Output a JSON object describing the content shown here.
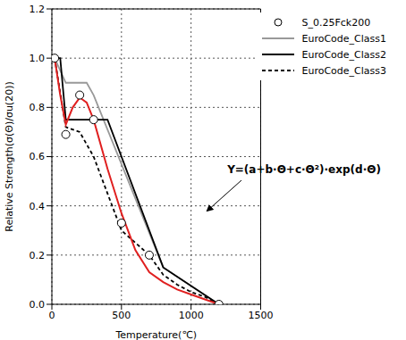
{
  "chart_data": {
    "type": "line",
    "x_label": "Temperature(℃)",
    "y_label": "Relative Strength(σ(Θ)/σu(20))",
    "xlim": [
      0,
      1500
    ],
    "xticks": [
      0,
      500,
      1000,
      1500
    ],
    "ylim": [
      0,
      1.2
    ],
    "yticks": [
      {
        "value": 0,
        "label": "0.0"
      },
      {
        "value": 0.2,
        "label": "0.2"
      },
      {
        "value": 0.4,
        "label": "0.4"
      },
      {
        "value": 0.6,
        "label": "0.6"
      },
      {
        "value": 0.8,
        "label": "0.8"
      },
      {
        "value": 1,
        "label": "1.0"
      },
      {
        "value": 1.2,
        "label": "1.2"
      }
    ],
    "grid": true,
    "legend": "upper right",
    "annotations": [
      {
        "text": "Y=(a+b·Θ+c·Θ²)·exp(d·Θ)"
      }
    ],
    "series": [
      {
        "name": "S_0.25Fck200",
        "type": "scatter",
        "marker": "circle",
        "color": "#000000",
        "x": [
          20,
          100,
          200,
          300,
          500,
          700,
          1200
        ],
        "values": [
          1.0,
          0.69,
          0.85,
          0.75,
          0.33,
          0.2,
          0.0
        ]
      },
      {
        "name": "EuroCode_Class1",
        "type": "line",
        "line_style": "solid",
        "color": "#999999",
        "x": [
          20,
          100,
          250,
          300,
          800,
          1200
        ],
        "values": [
          1.0,
          0.9,
          0.9,
          0.85,
          0.15,
          0.0
        ]
      },
      {
        "name": "EuroCode_Class2",
        "type": "line",
        "line_style": "solid",
        "color": "#000000",
        "x": [
          20,
          60,
          100,
          400,
          800,
          1200
        ],
        "values": [
          1.0,
          1.0,
          0.75,
          0.75,
          0.15,
          0.0
        ]
      },
      {
        "name": "EuroCode_Class3",
        "type": "line",
        "line_style": "dashed",
        "color": "#000000",
        "x": [
          20,
          100,
          200,
          300,
          400,
          500,
          600,
          700,
          800,
          900,
          1000,
          1100,
          1200
        ],
        "values": [
          1.0,
          0.72,
          0.7,
          0.6,
          0.45,
          0.3,
          0.25,
          0.2,
          0.12,
          0.08,
          0.05,
          0.03,
          0.0
        ]
      },
      {
        "type": "line",
        "line_style": "solid",
        "color": "#e02020",
        "x": [
          20,
          60,
          100,
          150,
          200,
          250,
          300,
          400,
          500,
          600,
          700,
          800,
          900,
          1000,
          1100,
          1200
        ],
        "values": [
          1.0,
          0.85,
          0.73,
          0.8,
          0.84,
          0.82,
          0.75,
          0.55,
          0.37,
          0.22,
          0.13,
          0.09,
          0.06,
          0.04,
          0.02,
          0.0
        ]
      }
    ]
  }
}
